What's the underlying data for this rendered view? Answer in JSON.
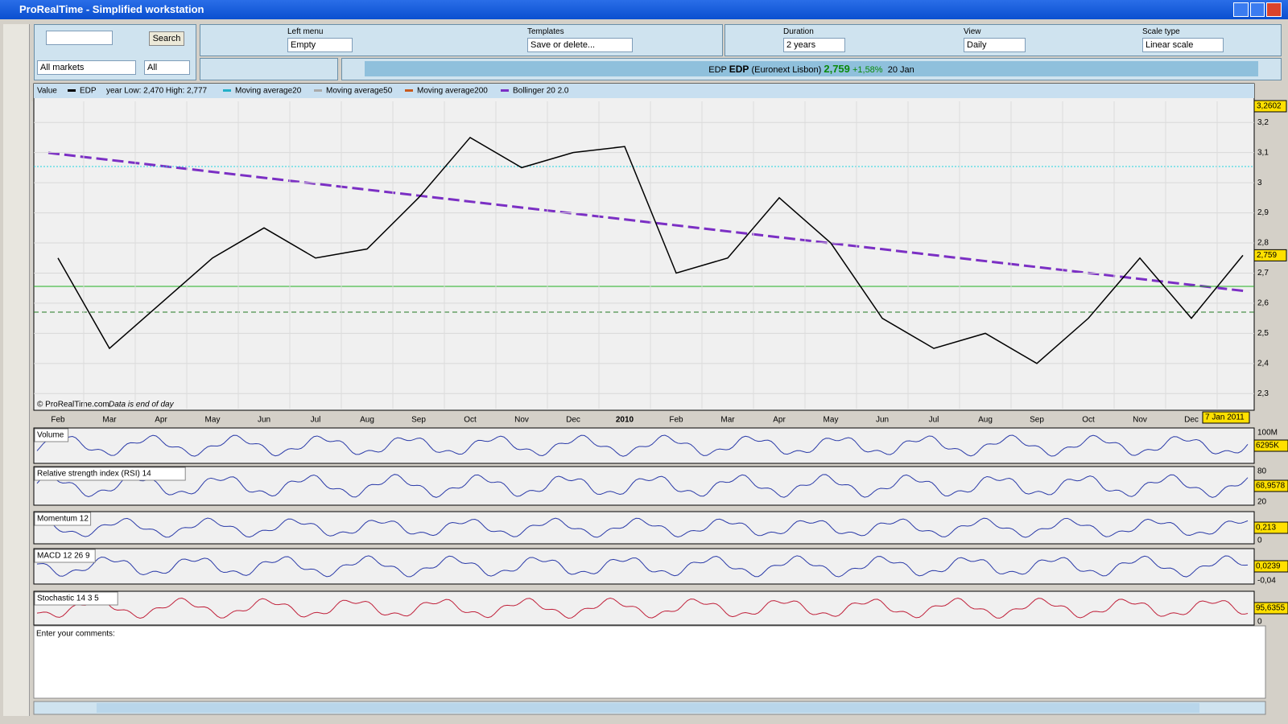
{
  "window": {
    "title": "ProRealTime - Simplified workstation"
  },
  "toolbar": {
    "search_button": "Search",
    "market": "All markets",
    "filter": "All",
    "left_menu_label": "Left menu",
    "left_menu": "Empty",
    "templates_label": "Templates",
    "templates": "Save or delete...",
    "duration_label": "Duration",
    "duration": "2 years",
    "view_label": "View",
    "view": "Daily",
    "scale_label": "Scale type",
    "scale": "Linear scale"
  },
  "quote": {
    "ticker": "EDP",
    "name": "EDP",
    "exchange": "(Euronext Lisbon)",
    "price": "2,759",
    "change": "+1,58%",
    "date": "20 Jan"
  },
  "legend": {
    "value": "Value",
    "instrument": "EDP",
    "range": "year Low: 2,470 High: 2,777",
    "ma20": "Moving average20",
    "ma50": "Moving average50",
    "ma200": "Moving average200",
    "bollinger": "Bollinger 20 2.0"
  },
  "footer_note": {
    "copyright": "© ProRealTime.com",
    "data_note": "Data is end of day"
  },
  "chart_data": {
    "type": "line",
    "categories": [
      "Feb",
      "Mar",
      "Apr",
      "May",
      "Jun",
      "Jul",
      "Aug",
      "Sep",
      "Oct",
      "Nov",
      "Dec",
      "2010",
      "Feb",
      "Mar",
      "Apr",
      "May",
      "Jun",
      "Jul",
      "Aug",
      "Sep",
      "Oct",
      "Nov",
      "Dec",
      null
    ],
    "series": [
      {
        "name": "EDP",
        "color": "#000000",
        "values": [
          2.75,
          2.45,
          2.6,
          2.75,
          2.85,
          2.75,
          2.78,
          2.95,
          3.15,
          3.05,
          3.1,
          3.12,
          2.7,
          2.75,
          2.95,
          2.8,
          2.55,
          2.45,
          2.5,
          2.4,
          2.55,
          2.75,
          2.55,
          2.759
        ]
      }
    ],
    "ylim": [
      2.25,
      3.27
    ],
    "yticks": [
      {
        "value": 3.2,
        "label": "3,2"
      },
      {
        "value": 3.1,
        "label": "3,1"
      },
      3,
      {
        "value": 2.9,
        "label": "2,9"
      },
      {
        "value": 2.8,
        "label": "2,8"
      },
      {
        "value": 2.7,
        "label": "2,7"
      },
      {
        "value": 2.6,
        "label": "2,6"
      },
      {
        "value": 2.5,
        "label": "2,5"
      },
      {
        "value": 2.4,
        "label": "2,4"
      },
      {
        "value": 2.3,
        "label": "2,3"
      }
    ],
    "grid": true,
    "high_badge": "3,2602",
    "last_badge": "2,759",
    "date_badge": "7 Jan 2011"
  },
  "indicators": [
    {
      "name": "Volume",
      "value": "6295K",
      "scale_top": "100M"
    },
    {
      "name": "Relative strength index (RSI) 14",
      "value": "68,9578",
      "scale_top": "80",
      "scale_bottom": "20"
    },
    {
      "name": "Momentum 12",
      "value": "0,213",
      "scale_bottom": "0"
    },
    {
      "name": "MACD 12 26 9",
      "value": "0,0239",
      "scale_bottom": "-0,04"
    },
    {
      "name": "Stochastic 14 3 5",
      "value": "95,6355",
      "scale_bottom": "0"
    }
  ],
  "comments": {
    "placeholder": "Enter your comments:"
  }
}
